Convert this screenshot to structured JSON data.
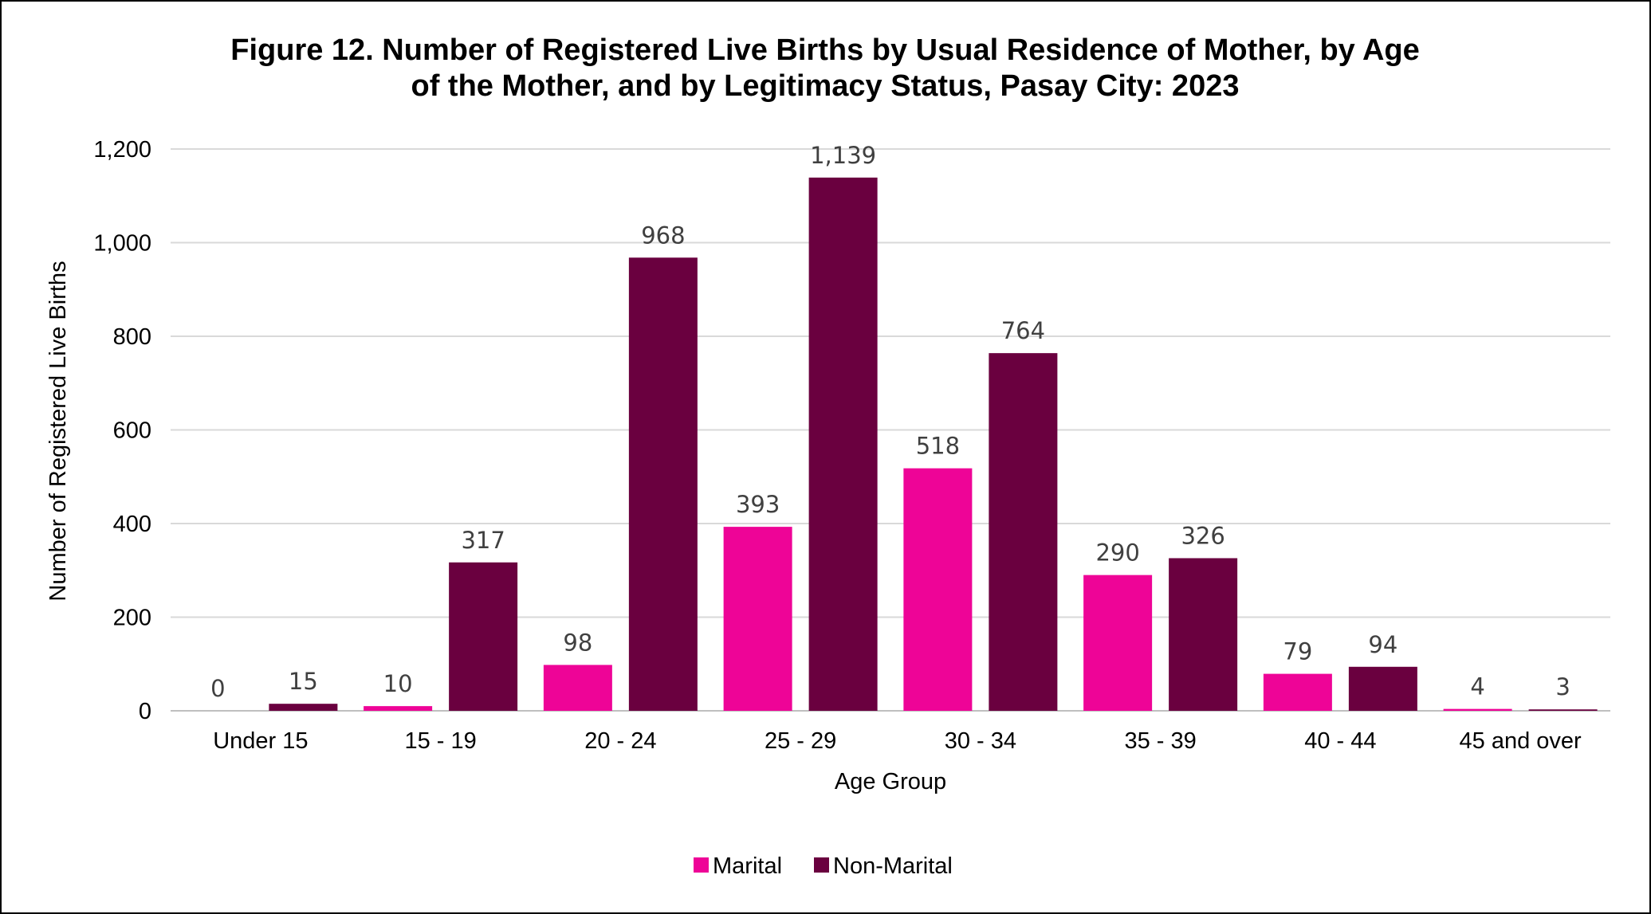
{
  "chart_data": {
    "type": "bar",
    "title_lines": [
      "Figure 12. Number of Registered Live Births by Usual Residence of Mother, by Age",
      "of the Mother, and by Legitimacy Status, Pasay City: 2023"
    ],
    "xlabel": "Age Group",
    "ylabel": "Number of Registered Live Births",
    "categories": [
      "Under 15",
      "15 - 19",
      "20 - 24",
      "25 - 29",
      "30 - 34",
      "35 - 39",
      "40 - 44",
      "45 and over"
    ],
    "series": [
      {
        "name": "Marital",
        "color": "#EE0497",
        "values": [
          0,
          10,
          98,
          393,
          518,
          290,
          79,
          4
        ]
      },
      {
        "name": "Non-Marital",
        "color": "#6A003F",
        "values": [
          15,
          317,
          968,
          1139,
          764,
          326,
          94,
          3
        ]
      }
    ],
    "ylim": [
      0,
      1200
    ],
    "yticks": [
      0,
      200,
      400,
      600,
      800,
      1000,
      1200
    ],
    "ytick_labels": [
      "0",
      "200",
      "400",
      "600",
      "800",
      "1,000",
      "1,200"
    ],
    "data_labels": [
      [
        "0",
        "10",
        "98",
        "393",
        "518",
        "290",
        "79",
        "4"
      ],
      [
        "15",
        "317",
        "968",
        "1,139",
        "764",
        "326",
        "94",
        "3"
      ]
    ],
    "grid": true,
    "grid_color": "#D9D9D9",
    "legend_position": "bottom"
  }
}
